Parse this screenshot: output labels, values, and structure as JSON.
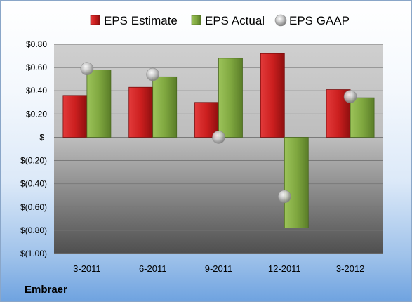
{
  "company": "Embraer",
  "chart_data": {
    "type": "bar",
    "categories": [
      "3-2011",
      "6-2011",
      "9-2011",
      "12-2011",
      "3-2012"
    ],
    "series": [
      {
        "name": "EPS Estimate",
        "kind": "bar",
        "color": "#cc1f1f",
        "values": [
          0.36,
          0.43,
          0.3,
          0.72,
          0.41
        ]
      },
      {
        "name": "EPS Actual",
        "kind": "bar",
        "color": "#80a840",
        "values": [
          0.58,
          0.52,
          0.68,
          -0.78,
          0.34
        ]
      },
      {
        "name": "EPS GAAP",
        "kind": "marker",
        "color": "#b8b8b8",
        "values": [
          0.59,
          0.54,
          0.0,
          -0.51,
          0.35
        ]
      }
    ],
    "ylim": [
      -1.0,
      0.8
    ],
    "yticks": [
      0.8,
      0.6,
      0.4,
      0.2,
      0,
      -0.2,
      -0.4,
      -0.6,
      -0.8,
      -1.0
    ],
    "ytick_labels": [
      "$0.80",
      "$0.60",
      "$0.40",
      "$0.20",
      "$-",
      "$(0.20)",
      "$(0.40)",
      "$(0.60)",
      "$(0.80)",
      "$(1.00)"
    ],
    "grid": true,
    "legend_position": "top"
  }
}
